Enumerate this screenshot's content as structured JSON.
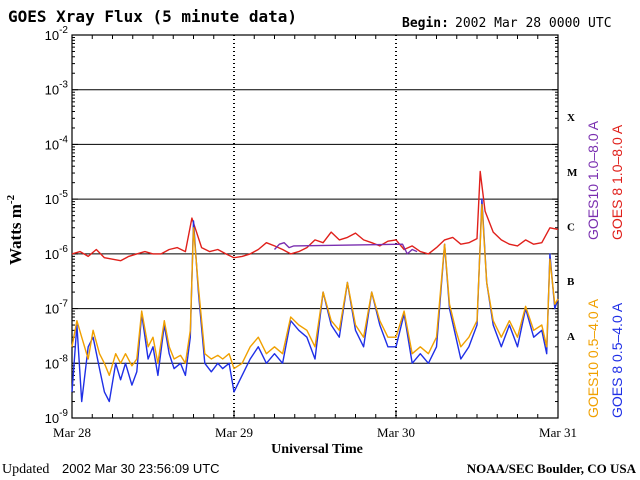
{
  "header": {
    "title": "GOES Xray Flux (5 minute data)",
    "begin_label": "Begin:",
    "begin_value": "2002 Mar 28 0000 UTC"
  },
  "footer": {
    "updated_label": "Updated",
    "updated_value": "2002 Mar 30 23:56:09 UTC",
    "credit": "NOAA/SEC Boulder, CO USA"
  },
  "chart_data": {
    "type": "line",
    "title": "GOES Xray Flux (5 minute data)",
    "xlabel": "Universal Time",
    "ylabel_main": "Watts m",
    "ylabel_exp": "-2",
    "y_scale": "log",
    "ylim": [
      1e-09,
      0.01
    ],
    "x_range_days": [
      0,
      3
    ],
    "x_ticks": [
      {
        "day": 0,
        "label": "Mar 28"
      },
      {
        "day": 1,
        "label": "Mar 29"
      },
      {
        "day": 2,
        "label": "Mar 30"
      },
      {
        "day": 3,
        "label": "Mar 31"
      }
    ],
    "y_ticks": [
      {
        "exp": -2,
        "base": "10",
        "sup": "-2"
      },
      {
        "exp": -3,
        "base": "10",
        "sup": "-3"
      },
      {
        "exp": -4,
        "base": "10",
        "sup": "-4"
      },
      {
        "exp": -5,
        "base": "10",
        "sup": "-5"
      },
      {
        "exp": -6,
        "base": "10",
        "sup": "-6"
      },
      {
        "exp": -7,
        "base": "10",
        "sup": "-7"
      },
      {
        "exp": -8,
        "base": "10",
        "sup": "-8"
      },
      {
        "exp": -9,
        "base": "10",
        "sup": "-9"
      }
    ],
    "flare_classes": [
      {
        "label": "X",
        "exp": -3.5
      },
      {
        "label": "M",
        "exp": -4.5
      },
      {
        "label": "C",
        "exp": -5.5
      },
      {
        "label": "B",
        "exp": -6.5
      },
      {
        "label": "A",
        "exp": -7.5
      }
    ],
    "grid_lines_exp": [
      -3,
      -4,
      -5,
      -6,
      -7,
      -8
    ],
    "legend_placement": "right (vertical)",
    "legend": [
      {
        "label": "GOES10 1.0–8.0 A",
        "color": "#7a2fb0"
      },
      {
        "label": "GOES 8 1.0–8.0 A",
        "color": "#e0201b"
      },
      {
        "label": "GOES10 0.5–4.0 A",
        "color": "#f0a000"
      },
      {
        "label": "GOES 8 0.5–4.0 A",
        "color": "#1f2fe6"
      }
    ],
    "series": [
      {
        "name": "GOES 8 1.0–8.0 A",
        "color": "#e0201b",
        "x_days": [
          0.0,
          0.05,
          0.1,
          0.15,
          0.2,
          0.25,
          0.3,
          0.35,
          0.4,
          0.45,
          0.5,
          0.55,
          0.6,
          0.65,
          0.7,
          0.74,
          0.76,
          0.8,
          0.85,
          0.9,
          0.95,
          1.0,
          1.05,
          1.1,
          1.15,
          1.2,
          1.25,
          1.3,
          1.35,
          1.4,
          1.45,
          1.5,
          1.55,
          1.6,
          1.65,
          1.7,
          1.75,
          1.8,
          1.85,
          1.9,
          1.95,
          2.0,
          2.05,
          2.1,
          2.15,
          2.2,
          2.25,
          2.3,
          2.35,
          2.4,
          2.45,
          2.5,
          2.52,
          2.55,
          2.6,
          2.65,
          2.7,
          2.75,
          2.8,
          2.85,
          2.9,
          2.95,
          3.0
        ],
        "values": [
          1e-06,
          1.1e-06,
          9e-07,
          1.2e-06,
          8.5e-07,
          8e-07,
          7.5e-07,
          9e-07,
          1e-06,
          1.1e-06,
          1e-06,
          1e-06,
          1.2e-06,
          1.3e-06,
          1.1e-06,
          4.5e-06,
          3e-06,
          1.3e-06,
          1.1e-06,
          1.2e-06,
          1e-06,
          8.5e-07,
          9e-07,
          1e-06,
          1.2e-06,
          1.6e-06,
          1.4e-06,
          1.2e-06,
          1e-06,
          1.1e-06,
          1.3e-06,
          1.8e-06,
          1.6e-06,
          2.5e-06,
          1.8e-06,
          2e-06,
          2.4e-06,
          1.8e-06,
          1.6e-06,
          1.4e-06,
          1.7e-06,
          1.8e-06,
          1.2e-06,
          1.4e-06,
          1.1e-06,
          1e-06,
          1.3e-06,
          1.8e-06,
          2e-06,
          1.5e-06,
          1.6e-06,
          1.9e-06,
          3.2e-05,
          6e-06,
          2.5e-06,
          1.8e-06,
          1.5e-06,
          1.4e-06,
          1.8e-06,
          1.5e-06,
          1.6e-06,
          3e-06,
          2.8e-06
        ]
      },
      {
        "name": "GOES 8 0.5–4.0 A",
        "color": "#1f2fe6",
        "x_days": [
          0.0,
          0.03,
          0.06,
          0.1,
          0.13,
          0.17,
          0.2,
          0.23,
          0.27,
          0.3,
          0.33,
          0.37,
          0.4,
          0.43,
          0.47,
          0.5,
          0.53,
          0.57,
          0.6,
          0.63,
          0.67,
          0.7,
          0.73,
          0.75,
          0.78,
          0.82,
          0.86,
          0.9,
          0.93,
          0.97,
          1.0,
          1.05,
          1.1,
          1.15,
          1.2,
          1.25,
          1.3,
          1.35,
          1.4,
          1.45,
          1.5,
          1.55,
          1.6,
          1.65,
          1.7,
          1.75,
          1.8,
          1.85,
          1.9,
          1.95,
          2.0,
          2.05,
          2.1,
          2.15,
          2.2,
          2.25,
          2.3,
          2.33,
          2.37,
          2.4,
          2.45,
          2.5,
          2.53,
          2.56,
          2.6,
          2.65,
          2.7,
          2.75,
          2.8,
          2.85,
          2.9,
          2.93,
          2.95,
          2.98,
          3.0
        ],
        "values": [
          3e-09,
          5e-08,
          2e-09,
          2e-08,
          3e-08,
          8e-09,
          3e-09,
          2e-09,
          1e-08,
          5e-09,
          1e-08,
          4e-09,
          7e-09,
          8e-08,
          1.2e-08,
          2e-08,
          6e-09,
          5e-08,
          1.5e-08,
          8e-09,
          1e-08,
          6e-09,
          3e-08,
          4e-06,
          2e-07,
          1e-08,
          7e-09,
          1e-08,
          8e-09,
          1e-08,
          3e-09,
          6e-09,
          1.2e-08,
          2e-08,
          1e-08,
          1.5e-08,
          1e-08,
          6e-08,
          4e-08,
          3e-08,
          1.2e-08,
          2e-07,
          5e-08,
          3e-08,
          3e-07,
          4e-08,
          2e-08,
          2e-07,
          5e-08,
          2e-08,
          2e-08,
          8e-08,
          1e-08,
          1.5e-08,
          1e-08,
          2e-08,
          1.5e-06,
          1e-07,
          3e-08,
          1.2e-08,
          2e-08,
          5e-08,
          1e-05,
          3e-07,
          5e-08,
          2e-08,
          5e-08,
          2e-08,
          1e-07,
          3e-08,
          4e-08,
          1.5e-08,
          1e-06,
          1e-07,
          1.5e-07
        ]
      },
      {
        "name": "GOES10 0.5–4.0 A",
        "color": "#f0a000",
        "x_days": [
          0.0,
          0.03,
          0.06,
          0.1,
          0.13,
          0.17,
          0.2,
          0.23,
          0.27,
          0.3,
          0.33,
          0.37,
          0.4,
          0.43,
          0.47,
          0.5,
          0.53,
          0.57,
          0.6,
          0.63,
          0.67,
          0.7,
          0.73,
          0.75,
          0.78,
          0.82,
          0.86,
          0.9,
          0.93,
          0.97,
          1.0,
          1.05,
          1.1,
          1.15,
          1.2,
          1.25,
          1.3,
          1.35,
          1.4,
          1.45,
          1.5,
          1.55,
          1.6,
          1.65,
          1.7,
          1.75,
          1.8,
          1.85,
          1.9,
          1.95,
          2.0,
          2.05,
          2.1,
          2.15,
          2.2,
          2.25,
          2.3,
          2.33,
          2.37,
          2.4,
          2.45,
          2.5,
          2.53,
          2.56,
          2.6,
          2.65,
          2.7,
          2.75,
          2.8,
          2.85,
          2.9,
          2.93,
          2.95,
          2.98,
          3.0
        ],
        "values": [
          2e-08,
          6e-08,
          3e-08,
          1.2e-08,
          4e-08,
          1.5e-08,
          1e-08,
          6e-09,
          1.5e-08,
          1e-08,
          1.5e-08,
          9e-09,
          1.2e-08,
          9e-08,
          2e-08,
          3e-08,
          1e-08,
          6e-08,
          2e-08,
          1.2e-08,
          1.4e-08,
          1e-08,
          4e-08,
          3e-06,
          2.5e-07,
          1.5e-08,
          1.2e-08,
          1.4e-08,
          1.2e-08,
          1.5e-08,
          8e-09,
          1e-08,
          2e-08,
          3e-08,
          1.5e-08,
          2e-08,
          1.5e-08,
          7e-08,
          5e-08,
          4e-08,
          2e-08,
          2e-07,
          6e-08,
          4e-08,
          3e-07,
          5e-08,
          3e-08,
          2e-07,
          6e-08,
          3e-08,
          3e-08,
          9e-08,
          1.5e-08,
          2e-08,
          1.5e-08,
          3e-08,
          1.5e-06,
          1.2e-07,
          4e-08,
          2e-08,
          3e-08,
          6e-08,
          8e-06,
          3e-07,
          6e-08,
          3e-08,
          6e-08,
          3e-08,
          1.1e-07,
          4e-08,
          5e-08,
          2e-08,
          8e-07,
          1.2e-07,
          1.5e-07
        ]
      },
      {
        "name": "GOES10 1.0–8.0 A",
        "color": "#7a2fb0",
        "x_days": [
          1.25,
          1.28,
          1.31,
          1.34,
          1.37,
          2.04,
          2.07,
          2.1,
          2.13
        ],
        "values": [
          1.2e-06,
          1.5e-06,
          1.6e-06,
          1.3e-06,
          1.4e-06,
          1.5e-06,
          1e-06,
          1.2e-06,
          1.1e-06
        ]
      }
    ]
  }
}
